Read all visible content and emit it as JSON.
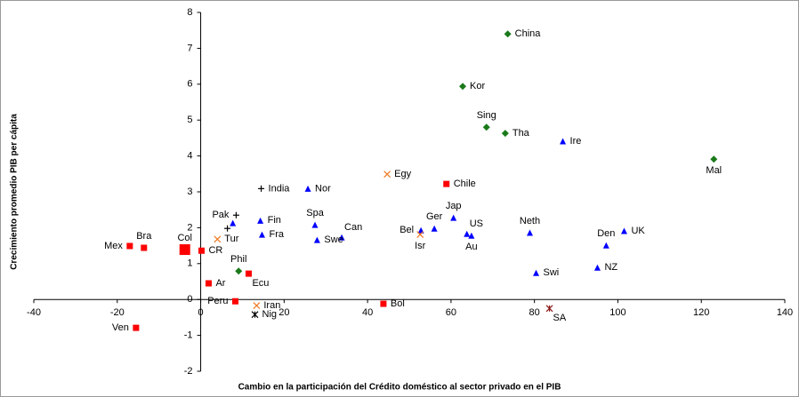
{
  "chart_data": {
    "type": "scatter",
    "xlabel": "Cambio en la participación del Crédito doméstico al sector privado en el PIB",
    "ylabel": "Crecimiento promedio PIB per cápita",
    "xlim": [
      -40,
      140
    ],
    "xticks": [
      -40,
      -20,
      0,
      20,
      40,
      60,
      80,
      100,
      120,
      140
    ],
    "ylim": [
      -2,
      8
    ],
    "yticks": [
      -2,
      -1,
      0,
      1,
      2,
      3,
      4,
      5,
      6,
      7,
      8
    ],
    "series": [
      {
        "color": "#1a7a1a",
        "marker": "diamond",
        "labels": [
          "China",
          "Kor",
          "Sing",
          "Tha",
          "Mal",
          "Phil"
        ],
        "x": [
          73.6,
          62.8,
          68.5,
          73.0,
          123.0,
          9.1
        ],
        "y": [
          7.4,
          5.94,
          4.8,
          4.63,
          3.91,
          0.79
        ]
      },
      {
        "color": "#0000ff",
        "marker": "triangle",
        "labels": [
          "Ire",
          "Nor",
          "Fin",
          "Fra",
          "Spa",
          "Can",
          "Swe",
          "Ger",
          "Jap",
          "US",
          "Au",
          "Bel",
          "Neth",
          "Den",
          "UK",
          "NZ",
          "Swi",
          null
        ],
        "x": [
          86.8,
          25.7,
          14.3,
          14.7,
          27.4,
          33.8,
          27.9,
          56.0,
          60.6,
          63.8,
          64.9,
          52.8,
          78.9,
          97.2,
          101.5,
          95.1,
          80.4,
          7.7
        ],
        "y": [
          4.41,
          3.09,
          2.2,
          1.81,
          2.08,
          1.73,
          1.66,
          1.98,
          2.28,
          1.83,
          1.78,
          1.93,
          1.86,
          1.51,
          1.91,
          0.89,
          0.74,
          2.13
        ]
      },
      {
        "color": "#ff0000",
        "marker": "square",
        "labels": [
          "Chile",
          "Bra",
          "Mex",
          "CR",
          "Ecu",
          "Ar",
          "Peru",
          "Ven",
          "Bol"
        ],
        "x": [
          58.9,
          -13.6,
          -17.0,
          0.2,
          11.5,
          1.9,
          8.3,
          -15.5,
          43.8
        ],
        "y": [
          3.22,
          1.44,
          1.49,
          1.36,
          0.72,
          0.45,
          -0.05,
          -0.79,
          -0.12
        ]
      },
      {
        "color": "#ff0000",
        "marker": "square",
        "marker_size": 12,
        "labels": [
          "Col"
        ],
        "x": [
          -3.8
        ],
        "y": [
          1.39
        ]
      },
      {
        "color": "#f07820",
        "marker": "x",
        "labels": [
          "Egy",
          "Tur",
          "Isr",
          "Iran"
        ],
        "x": [
          44.7,
          4.0,
          52.6,
          13.4
        ],
        "y": [
          3.49,
          1.68,
          1.81,
          -0.17
        ]
      },
      {
        "color": "#000000",
        "marker": "plus",
        "labels": [
          "India",
          "Pak",
          null
        ],
        "x": [
          14.5,
          8.5,
          6.4
        ],
        "y": [
          3.09,
          2.35,
          1.98
        ]
      },
      {
        "color": "#000000",
        "marker": "asterisk",
        "labels": [
          "Nig"
        ],
        "x": [
          13.0
        ],
        "y": [
          -0.42
        ]
      },
      {
        "color": "#8b1a1a",
        "marker": "asterisk",
        "labels": [
          "SA"
        ],
        "x": [
          83.6
        ],
        "y": [
          -0.25
        ]
      }
    ]
  }
}
